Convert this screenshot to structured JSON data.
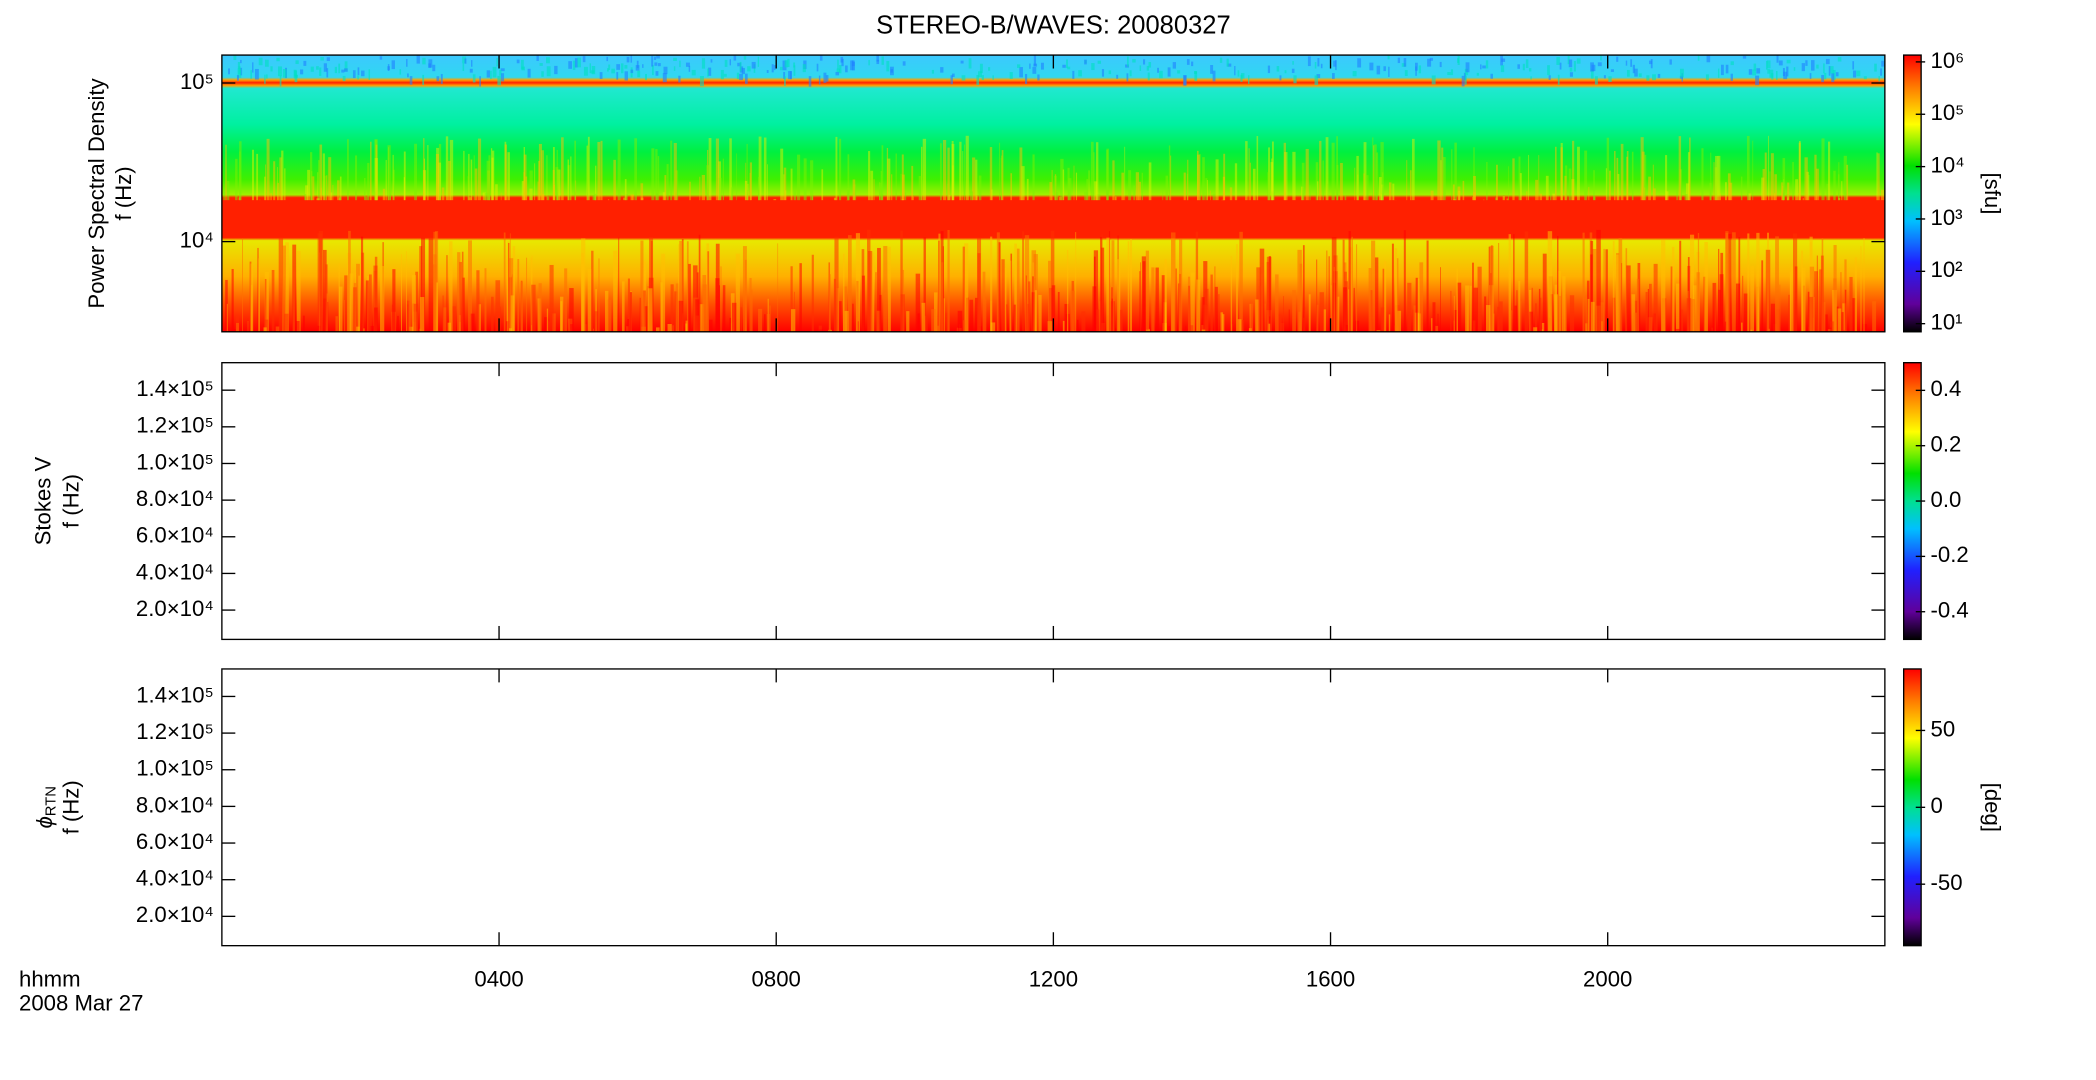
{
  "title": "STEREO-B/WAVES: 20080327",
  "x_axis": {
    "label": "hhmm",
    "date": "2008 Mar 27",
    "xlim": [
      0,
      24
    ],
    "xticks": [
      {
        "value": 4,
        "label": "0400"
      },
      {
        "value": 8,
        "label": "0800"
      },
      {
        "value": 12,
        "label": "1200"
      },
      {
        "value": 16,
        "label": "1600"
      },
      {
        "value": 20,
        "label": "2000"
      }
    ]
  },
  "chart_data": [
    {
      "type": "spectrogram",
      "quantity": "Power Spectral Density",
      "ylabel": "f (Hz)",
      "log_y": true,
      "ylim": [
        2700,
        150000
      ],
      "yticks": [
        {
          "value": 10000,
          "label": "10⁴"
        },
        {
          "value": 100000,
          "label": "10⁵"
        }
      ],
      "colorbar": {
        "label": "[sfu]",
        "log": true,
        "lim": [
          7,
          1350000
        ],
        "ticks": [
          {
            "value": 10,
            "label": "10¹"
          },
          {
            "value": 100,
            "label": "10²"
          },
          {
            "value": 1000,
            "label": "10³"
          },
          {
            "value": 10000,
            "label": "10⁴"
          },
          {
            "value": 100000,
            "label": "10⁵"
          },
          {
            "value": 1000000,
            "label": "10⁶"
          }
        ]
      }
    },
    {
      "type": "empty",
      "quantity": "Stokes V",
      "ylabel": "f (Hz)",
      "log_y": false,
      "ylim": [
        4000,
        155000
      ],
      "yticks": [
        {
          "value": 20000,
          "label": "2.0×10⁴"
        },
        {
          "value": 40000,
          "label": "4.0×10⁴"
        },
        {
          "value": 60000,
          "label": "6.0×10⁴"
        },
        {
          "value": 80000,
          "label": "8.0×10⁴"
        },
        {
          "value": 100000,
          "label": "1.0×10⁵"
        },
        {
          "value": 120000,
          "label": "1.2×10⁵"
        },
        {
          "value": 140000,
          "label": "1.4×10⁵"
        }
      ],
      "colorbar": {
        "log": false,
        "lim": [
          -0.5,
          0.5
        ],
        "ticks": [
          -0.4,
          -0.2,
          {
            "value": 0,
            "label": "0.0"
          },
          0.2,
          0.4
        ]
      }
    },
    {
      "type": "empty",
      "quantity": "ϕ",
      "quantity_sub": "RTN",
      "ylabel": "f (Hz)",
      "log_y": false,
      "ylim": [
        4000,
        155000
      ],
      "yticks": [
        {
          "value": 20000,
          "label": "2.0×10⁴"
        },
        {
          "value": 40000,
          "label": "4.0×10⁴"
        },
        {
          "value": 60000,
          "label": "6.0×10⁴"
        },
        {
          "value": 80000,
          "label": "8.0×10⁴"
        },
        {
          "value": 100000,
          "label": "1.0×10⁵"
        },
        {
          "value": 120000,
          "label": "1.2×10⁵"
        },
        {
          "value": 140000,
          "label": "1.4×10⁵"
        }
      ],
      "colorbar": {
        "label": "[deg]",
        "log": false,
        "lim": [
          -90,
          90
        ],
        "ticks": [
          -50,
          0,
          50
        ]
      }
    }
  ]
}
